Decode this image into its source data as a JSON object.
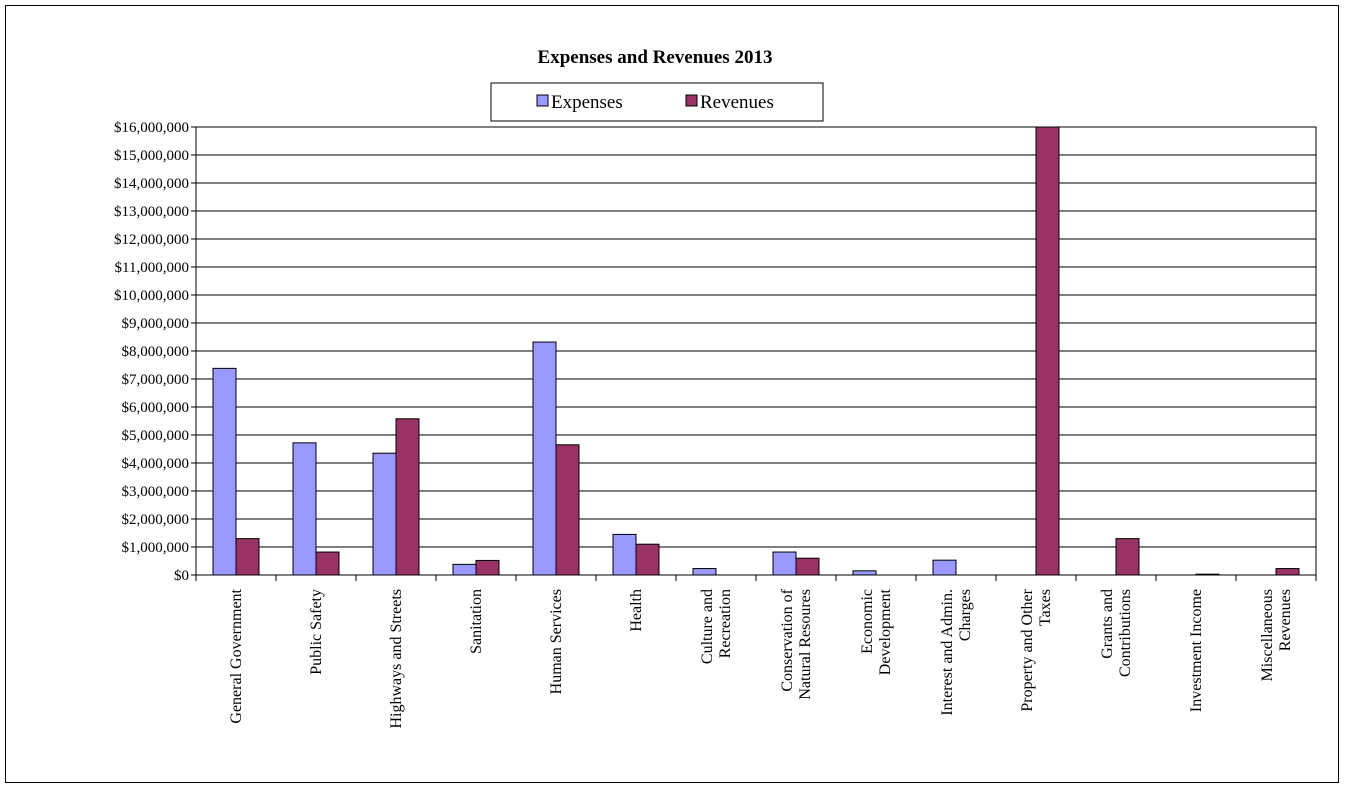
{
  "chart_data": {
    "type": "bar",
    "title": "Expenses and Revenues 2013",
    "xlabel": "",
    "ylabel": "",
    "ylim": [
      0,
      16000000
    ],
    "y_tick_labels": [
      "$0",
      "$1,000,000",
      "$2,000,000",
      "$3,000,000",
      "$4,000,000",
      "$5,000,000",
      "$6,000,000",
      "$7,000,000",
      "$8,000,000",
      "$9,000,000",
      "$10,000,000",
      "$11,000,000",
      "$12,000,000",
      "$13,000,000",
      "$14,000,000",
      "$15,000,000",
      "$16,000,000"
    ],
    "grid": true,
    "legend_position": "top-center",
    "categories": [
      [
        "General Government"
      ],
      [
        "Public Safety"
      ],
      [
        "Highways and Streets"
      ],
      [
        "Sanitation"
      ],
      [
        "Human Services"
      ],
      [
        "Health"
      ],
      [
        "Culture and",
        "Recreation"
      ],
      [
        "Conservation of",
        "Natural Resoures"
      ],
      [
        "Economic",
        "Development"
      ],
      [
        "Interest and Admin.",
        "Charges"
      ],
      [
        "Property and Other",
        "Taxes"
      ],
      [
        "Grants and",
        "Contributions"
      ],
      [
        "Investment Income"
      ],
      [
        "Miscellaneous",
        "Revenues"
      ]
    ],
    "series": [
      {
        "name": "Expenses",
        "color": "#9999ff",
        "values": [
          7380000,
          4720000,
          4350000,
          380000,
          8320000,
          1450000,
          230000,
          820000,
          150000,
          530000,
          0,
          0,
          0,
          0
        ]
      },
      {
        "name": "Revenues",
        "color": "#993366",
        "values": [
          1300000,
          820000,
          5580000,
          520000,
          4650000,
          1100000,
          0,
          600000,
          0,
          0,
          16000000,
          1300000,
          30000,
          230000
        ]
      }
    ]
  }
}
